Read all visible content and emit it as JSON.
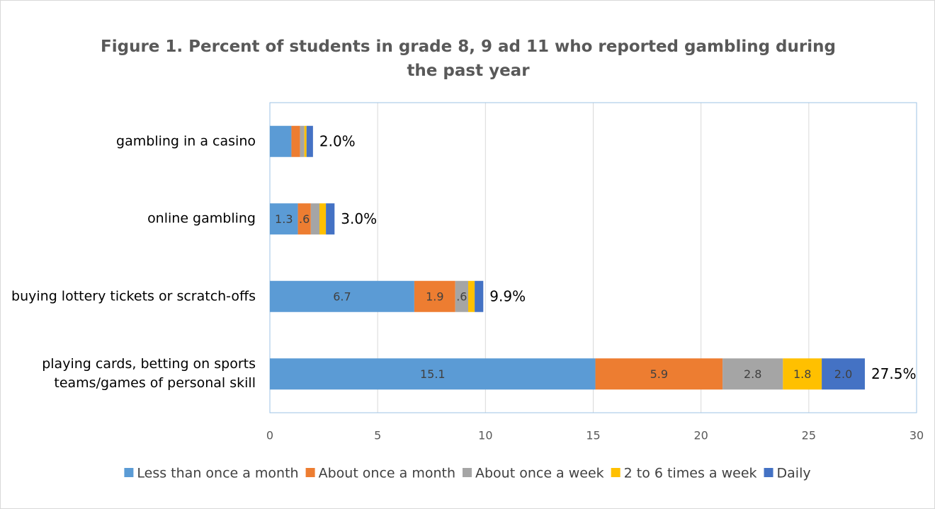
{
  "chart_data": {
    "type": "stacked_barh",
    "title": "Figure 1. Percent of students in grade 8, 9 ad 11 who reported gambling during the past year",
    "categories": [
      "gambling in a casino",
      "online gambling",
      "buying lottery tickets or scratch-offs",
      "playing cards, betting on sports teams/games of personal skill"
    ],
    "series": [
      {
        "name": "Less than once a month",
        "color": "#5b9bd5",
        "values": [
          1.0,
          1.3,
          6.7,
          15.1
        ],
        "value_labels": [
          null,
          "1.3",
          "6.7",
          "15.1"
        ]
      },
      {
        "name": "About once a month",
        "color": "#ed7d31",
        "values": [
          0.4,
          0.6,
          1.9,
          5.9
        ],
        "value_labels": [
          null,
          ".6",
          "1.9",
          "5.9"
        ]
      },
      {
        "name": "About once a week",
        "color": "#a5a5a5",
        "values": [
          0.2,
          0.4,
          0.6,
          2.8
        ],
        "value_labels": [
          null,
          null,
          ".6",
          "2.8"
        ]
      },
      {
        "name": "2 to 6 times a week",
        "color": "#ffc000",
        "values": [
          0.1,
          0.3,
          0.3,
          1.8
        ],
        "value_labels": [
          null,
          null,
          null,
          "1.8"
        ]
      },
      {
        "name": "Daily",
        "color": "#4472c4",
        "values": [
          0.3,
          0.4,
          0.4,
          2.0
        ],
        "value_labels": [
          null,
          null,
          null,
          "2.0"
        ]
      }
    ],
    "totals": [
      2.0,
      3.0,
      9.9,
      27.5
    ],
    "total_labels": [
      "2.0%",
      "3.0%",
      "9.9%",
      "27.5%"
    ],
    "xlim": [
      0,
      30
    ],
    "xticks": [
      0,
      5,
      10,
      15,
      20,
      25,
      30
    ],
    "grid": true,
    "legend": "bottom"
  }
}
